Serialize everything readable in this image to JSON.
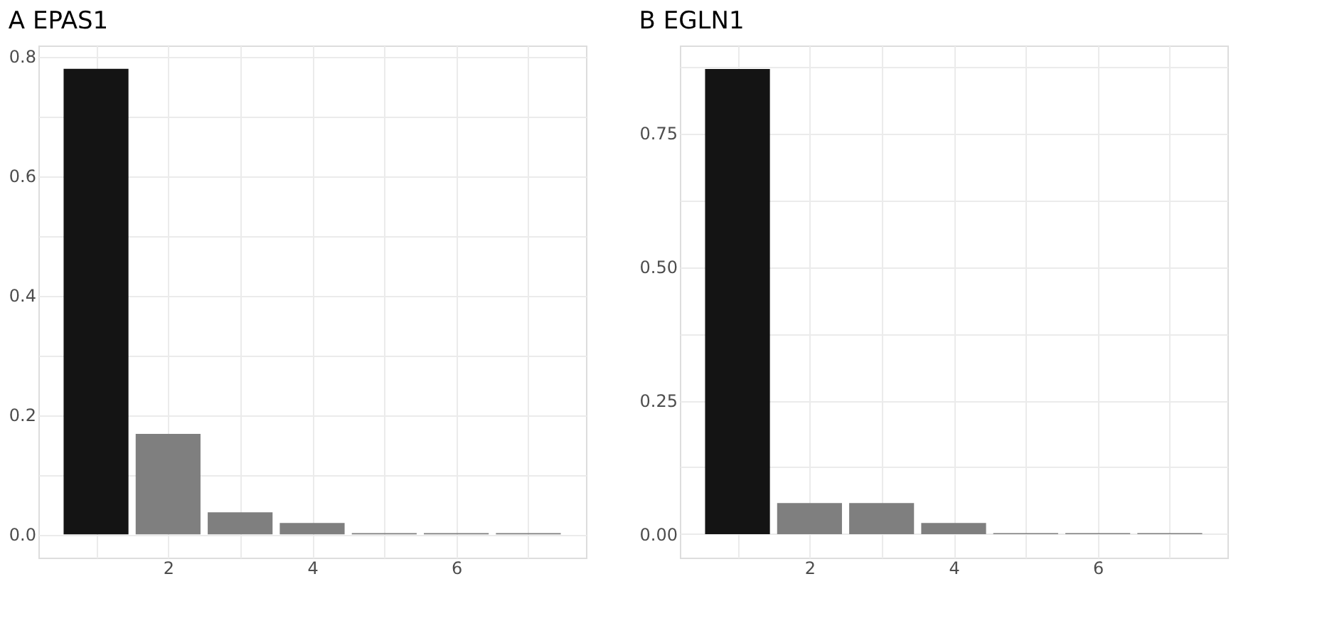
{
  "chart_data": [
    {
      "type": "bar",
      "title": "EPAS1",
      "annotations": [
        "A"
      ],
      "x": [
        1,
        2,
        3,
        4,
        5,
        6,
        7
      ],
      "values": [
        0.779,
        0.168,
        0.037,
        0.019,
        0.002,
        0.002,
        0.002
      ],
      "colors": [
        "#141414",
        "#7f7f7f",
        "#7f7f7f",
        "#7f7f7f",
        "#7f7f7f",
        "#7f7f7f",
        "#7f7f7f"
      ],
      "xlim": [
        0.2,
        7.8
      ],
      "ylim": [
        -0.039,
        0.818
      ],
      "xticks": [
        {
          "value": 1,
          "label": null
        },
        2,
        {
          "value": 3,
          "label": null
        },
        4,
        {
          "value": 5,
          "label": null
        },
        6,
        {
          "value": 7,
          "label": null
        }
      ],
      "yticks": [
        {
          "value": 0.0,
          "label": "0.0"
        },
        {
          "value": 0.1,
          "label": null
        },
        0.2,
        {
          "value": 0.3,
          "label": null
        },
        0.4,
        {
          "value": 0.5,
          "label": null
        },
        0.6,
        {
          "value": 0.7,
          "label": null
        },
        0.8
      ],
      "grid": true,
      "legend": false
    },
    {
      "type": "bar",
      "title": "EGLN1",
      "annotations": [
        "B"
      ],
      "x": [
        1,
        2,
        3,
        4,
        5,
        6,
        7
      ],
      "values": [
        0.87,
        0.058,
        0.058,
        0.021,
        0.002,
        0.002,
        0.002
      ],
      "colors": [
        "#141414",
        "#7f7f7f",
        "#7f7f7f",
        "#7f7f7f",
        "#7f7f7f",
        "#7f7f7f",
        "#7f7f7f"
      ],
      "xlim": [
        0.2,
        7.8
      ],
      "ylim": [
        -0.044,
        0.914
      ],
      "xticks": [
        {
          "value": 1,
          "label": null
        },
        2,
        {
          "value": 3,
          "label": null
        },
        4,
        {
          "value": 5,
          "label": null
        },
        6,
        {
          "value": 7,
          "label": null
        }
      ],
      "yticks": [
        {
          "value": 0.0,
          "label": "0.00"
        },
        {
          "value": 0.125,
          "label": null
        },
        {
          "value": 0.25,
          "label": "0.25"
        },
        {
          "value": 0.375,
          "label": null
        },
        {
          "value": 0.5,
          "label": "0.50"
        },
        {
          "value": 0.625,
          "label": null
        },
        {
          "value": 0.75,
          "label": "0.75"
        },
        {
          "value": 0.875,
          "label": null
        }
      ],
      "grid": true,
      "legend": false
    }
  ]
}
